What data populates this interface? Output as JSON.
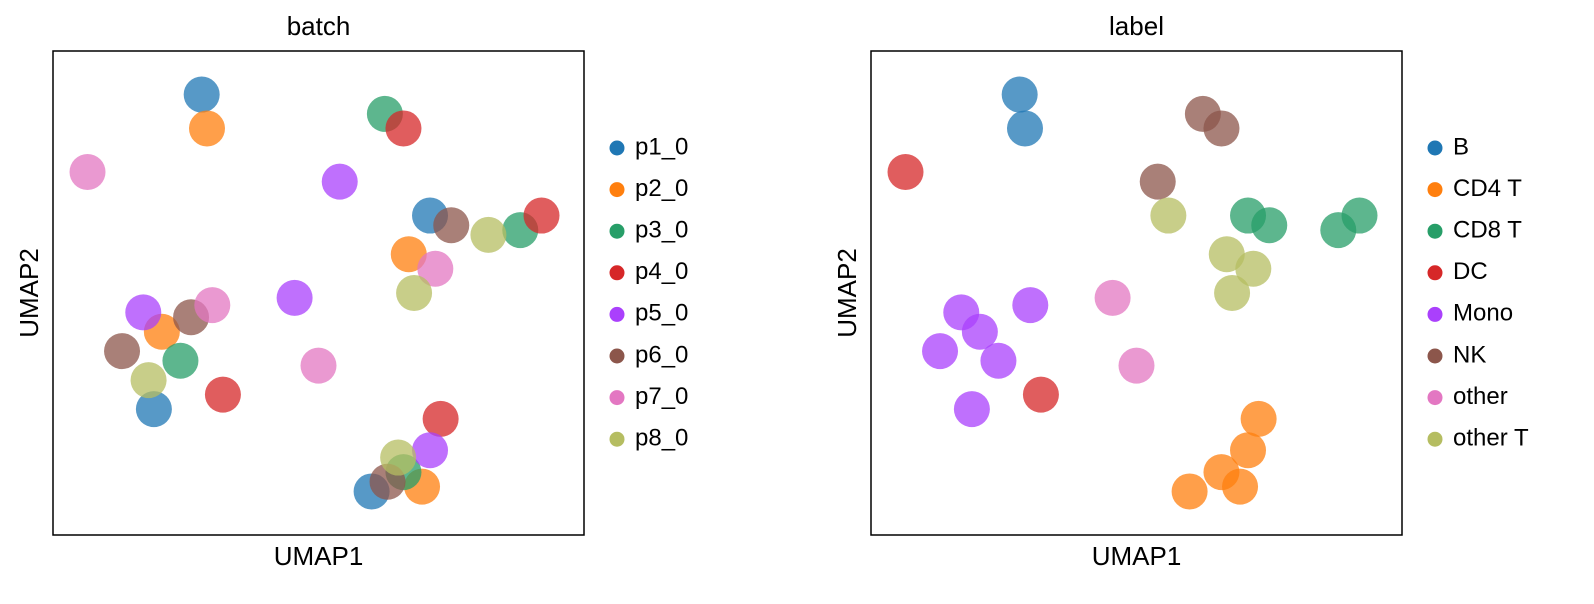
{
  "chart_data": [
    {
      "type": "scatter",
      "title": "batch",
      "x_label": "UMAP1",
      "y_label": "UMAP2",
      "xlim": [
        0,
        10
      ],
      "ylim": [
        0,
        10
      ],
      "series": [
        {
          "name": "p1_0",
          "color": "#1f77b4",
          "x": [
            2.8,
            7.1,
            1.9,
            6.0
          ],
          "y": [
            9.1,
            6.6,
            2.6,
            0.9
          ]
        },
        {
          "name": "p2_0",
          "color": "#ff7f0e",
          "x": [
            2.9,
            6.7,
            2.05,
            6.95
          ],
          "y": [
            8.4,
            5.8,
            4.2,
            1.0
          ]
        },
        {
          "name": "p3_0",
          "color": "#279e68",
          "x": [
            6.25,
            8.8,
            2.4,
            6.6
          ],
          "y": [
            8.7,
            6.3,
            3.6,
            1.3
          ]
        },
        {
          "name": "p4_0",
          "color": "#d62728",
          "x": [
            6.6,
            9.2,
            3.2,
            7.3
          ],
          "y": [
            8.4,
            6.6,
            2.9,
            2.4
          ]
        },
        {
          "name": "p5_0",
          "color": "#aa40fc",
          "x": [
            5.4,
            1.7,
            4.55,
            7.1
          ],
          "y": [
            7.3,
            4.6,
            4.9,
            1.75
          ]
        },
        {
          "name": "p6_0",
          "color": "#8c564b",
          "x": [
            7.5,
            1.3,
            6.3,
            2.6
          ],
          "y": [
            6.4,
            3.8,
            1.1,
            4.5
          ]
        },
        {
          "name": "p7_0",
          "color": "#e377c2",
          "x": [
            7.2,
            3.0,
            5.0,
            0.65
          ],
          "y": [
            5.5,
            4.75,
            3.5,
            7.5
          ]
        },
        {
          "name": "p8_0",
          "color": "#b5bd61",
          "x": [
            6.8,
            1.8,
            6.5,
            8.2
          ],
          "y": [
            5.0,
            3.2,
            1.6,
            6.2
          ]
        }
      ]
    },
    {
      "type": "scatter",
      "title": "label",
      "x_label": "UMAP1",
      "y_label": "UMAP2",
      "xlim": [
        0,
        10
      ],
      "ylim": [
        0,
        10
      ],
      "series": [
        {
          "name": "B",
          "color": "#1f77b4",
          "x": [
            2.8,
            2.9
          ],
          "y": [
            9.1,
            8.4
          ]
        },
        {
          "name": "CD4 T",
          "color": "#ff7f0e",
          "x": [
            6.6,
            6.0,
            7.1,
            6.95,
            7.3
          ],
          "y": [
            1.3,
            0.9,
            1.75,
            1.0,
            2.4
          ]
        },
        {
          "name": "CD8 T",
          "color": "#279e68",
          "x": [
            7.5,
            8.8,
            9.2,
            7.1
          ],
          "y": [
            6.4,
            6.3,
            6.6,
            6.6
          ]
        },
        {
          "name": "DC",
          "color": "#d62728",
          "x": [
            3.2,
            0.65
          ],
          "y": [
            2.9,
            7.5
          ]
        },
        {
          "name": "Mono",
          "color": "#aa40fc",
          "x": [
            2.05,
            1.7,
            2.4,
            1.9,
            3.0,
            1.3
          ],
          "y": [
            4.2,
            4.6,
            3.6,
            2.6,
            4.75,
            3.8
          ]
        },
        {
          "name": "NK",
          "color": "#8c564b",
          "x": [
            6.25,
            6.6,
            5.4
          ],
          "y": [
            8.7,
            8.4,
            7.3
          ]
        },
        {
          "name": "other",
          "color": "#e377c2",
          "x": [
            4.55,
            5.0
          ],
          "y": [
            4.9,
            3.5
          ]
        },
        {
          "name": "other T",
          "color": "#b5bd61",
          "x": [
            6.7,
            7.2,
            6.8,
            5.6
          ],
          "y": [
            5.8,
            5.5,
            5.0,
            6.6
          ]
        }
      ]
    }
  ]
}
